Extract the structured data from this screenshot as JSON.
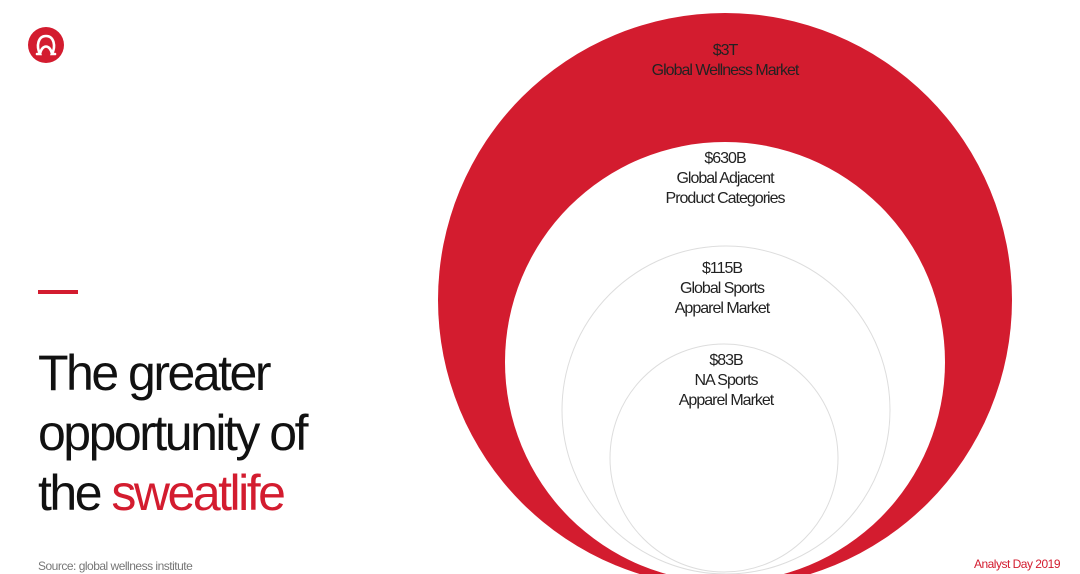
{
  "slide": {
    "title": {
      "lines": [
        "The greater",
        "opportunity of"
      ],
      "last_line_start": "the",
      "highlight": "sweatlife"
    },
    "circles": [
      {
        "value": "$3T",
        "lines": [
          "Global Wellness Market"
        ]
      },
      {
        "value": "$630B",
        "lines": [
          "Global Adjacent",
          "Product Categories"
        ]
      },
      {
        "value": "$115B",
        "lines": [
          "Global Sports",
          "Apparel Market"
        ]
      },
      {
        "value": "$83B",
        "lines": [
          "NA Sports",
          "Apparel Market"
        ]
      }
    ],
    "footer": {
      "source": "Source: global wellness institute",
      "event": "Analyst Day 2019"
    }
  }
}
